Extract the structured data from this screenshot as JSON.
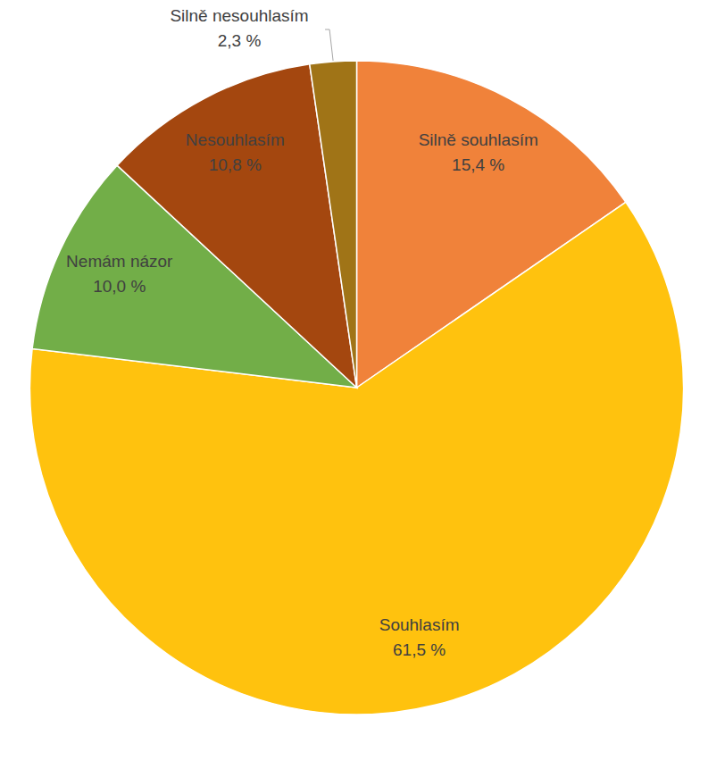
{
  "chart_data": {
    "type": "pie",
    "categories": [
      "Silně souhlasím",
      "Souhlasím",
      "Nemám názor",
      "Nesouhlasím",
      "Silně nesouhlasím"
    ],
    "values": [
      15.4,
      61.5,
      10.0,
      10.8,
      2.3
    ],
    "value_labels": [
      "15,4 %",
      "61,5 %",
      "10,0 %",
      "10,8 %",
      "2,3 %"
    ],
    "colors": [
      "#f0823a",
      "#ffc20e",
      "#72ae48",
      "#a4470f",
      "#a07417"
    ],
    "data_labels": true
  }
}
